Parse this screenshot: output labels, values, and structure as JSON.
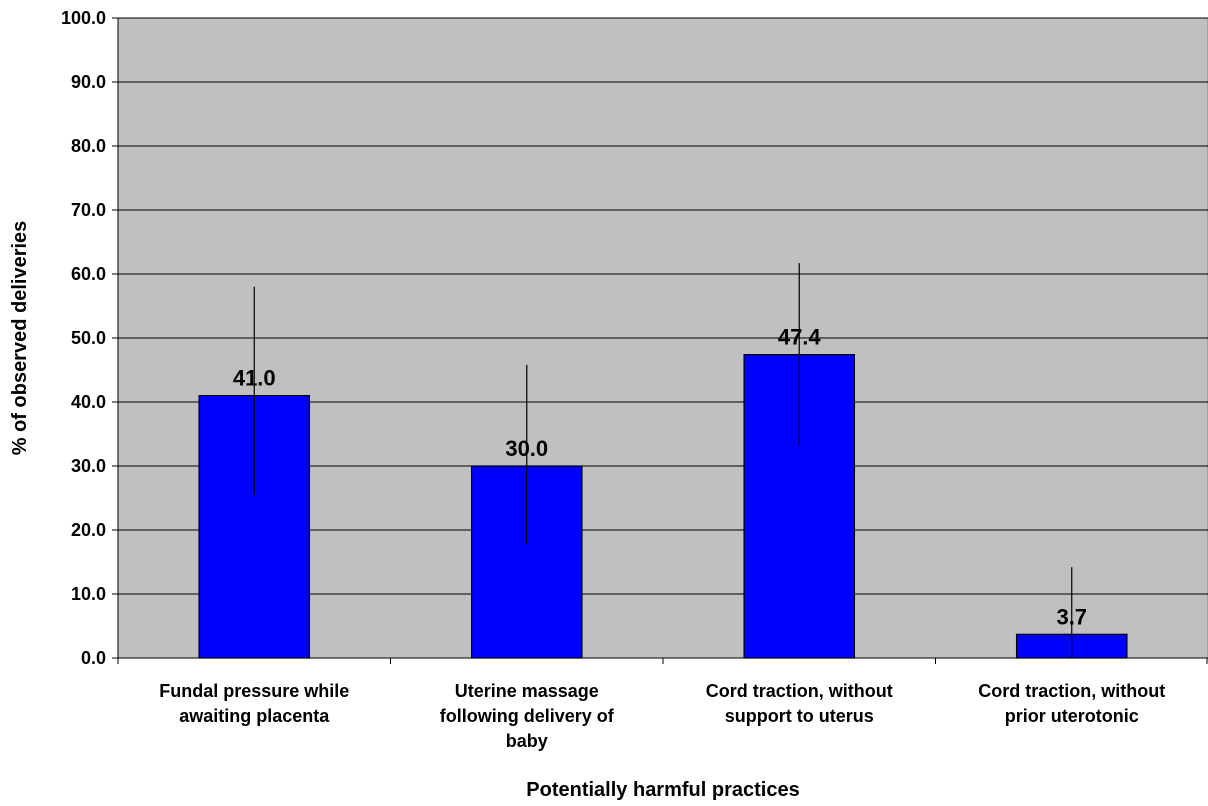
{
  "chart_data": {
    "type": "bar",
    "title": "",
    "xlabel": "Potentially harmful practices",
    "ylabel": "% of observed deliveries",
    "categories": [
      [
        "Fundal pressure while",
        "awaiting placenta"
      ],
      [
        "Uterine massage",
        "following delivery of",
        "baby"
      ],
      [
        "Cord traction, without",
        "support to uterus"
      ],
      [
        "Cord traction, without",
        "prior uterotonic"
      ]
    ],
    "values": [
      41.0,
      30.0,
      47.4,
      3.7
    ],
    "data_labels": [
      "41.0",
      "30.0",
      "47.4",
      "3.7"
    ],
    "error_bars": [
      {
        "low": 25.5,
        "high": 58.0
      },
      {
        "low": 17.8,
        "high": 45.8
      },
      {
        "low": 33.3,
        "high": 61.7
      },
      {
        "low": 0.0,
        "high": 14.2
      }
    ],
    "yticks": [
      "0.0",
      "10.0",
      "20.0",
      "30.0",
      "40.0",
      "50.0",
      "60.0",
      "70.0",
      "80.0",
      "90.0",
      "100.0"
    ],
    "ylim": [
      0,
      100
    ],
    "grid": true,
    "legend": "none",
    "colors": {
      "bar": "#0000ff",
      "plot_background": "#c0c0c0",
      "gridline": "#000000"
    }
  }
}
